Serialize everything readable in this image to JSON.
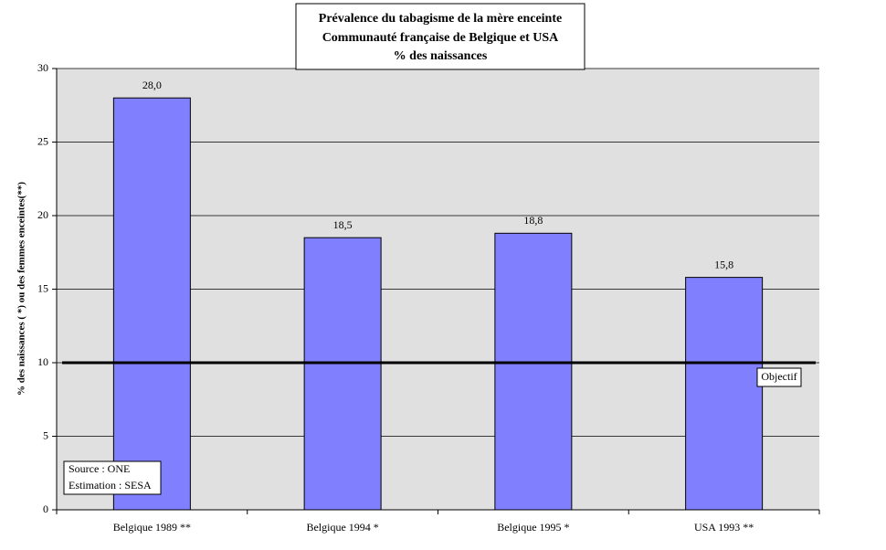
{
  "chart_data": {
    "type": "bar",
    "title": [
      "Prévalence du tabagisme  de   la mère enceinte",
      "Communauté française de Belgique  et USA",
      "% des naissances"
    ],
    "y_label": "% des naissances ( *) ou des femmes enceintes(**)",
    "categories": [
      "Belgique 1989 **",
      "Belgique 1994 *",
      "Belgique 1995 *",
      "USA 1993 **"
    ],
    "values": [
      28.0,
      18.5,
      18.8,
      15.8
    ],
    "value_labels": [
      "28,0",
      "18,5",
      "18,8",
      "15,8"
    ],
    "color": "#8080ff",
    "ylim": [
      0,
      30
    ],
    "yticks": [
      0,
      5,
      10,
      15,
      20,
      25,
      30
    ],
    "grid": true,
    "reference_line": {
      "value": 10,
      "label": "Objectif"
    },
    "annotations": [
      "Source : ONE",
      "Estimation : SESA"
    ]
  }
}
